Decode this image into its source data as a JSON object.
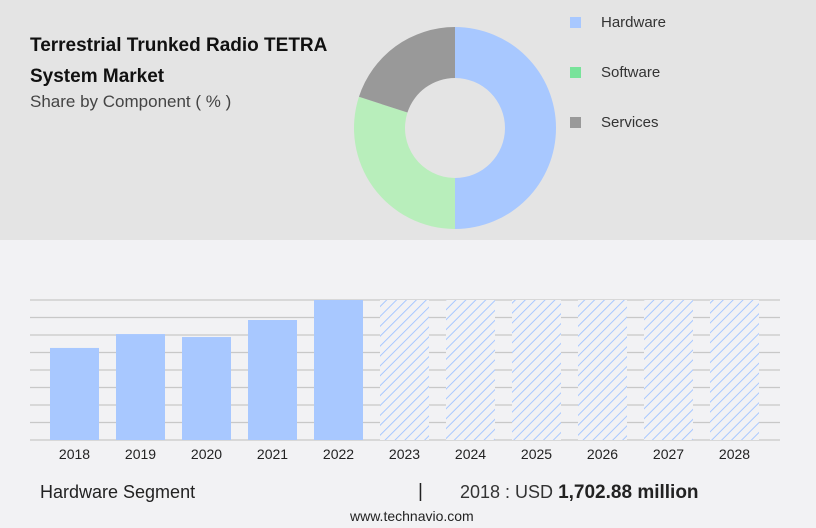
{
  "header": {
    "title": "Terrestrial Trunked Radio TETRA System Market",
    "subtitle": "Share by Component ( % )"
  },
  "footer": {
    "segment_label": "Hardware Segment",
    "separator": "|",
    "value_prefix": "2018 : USD",
    "value": "1,702.88 million",
    "url": "www.technavio.com"
  },
  "chart_data": [
    {
      "type": "pie",
      "variant": "donut",
      "categories": [
        "Hardware",
        "Software",
        "Services"
      ],
      "values": [
        50,
        30,
        20
      ],
      "colors": [
        "#a8c8ff",
        "#b8eebb",
        "#999999"
      ],
      "legend_colors": [
        "#a8c8ff",
        "#78e39a",
        "#999999"
      ],
      "legend": "right"
    },
    {
      "type": "bar",
      "categories": [
        "2018",
        "2019",
        "2020",
        "2021",
        "2022",
        "2023",
        "2024",
        "2025",
        "2026",
        "2027",
        "2028"
      ],
      "values": [
        1702.88,
        1960,
        1905,
        2220,
        2590,
        null,
        null,
        null,
        null,
        null,
        null
      ],
      "forecast": [
        false,
        false,
        false,
        false,
        false,
        true,
        true,
        true,
        true,
        true,
        true
      ],
      "unit": "USD million",
      "color": "#a8c8ff",
      "ylim": [
        0,
        2590
      ],
      "grid": true,
      "y_tick_labels": false
    }
  ]
}
